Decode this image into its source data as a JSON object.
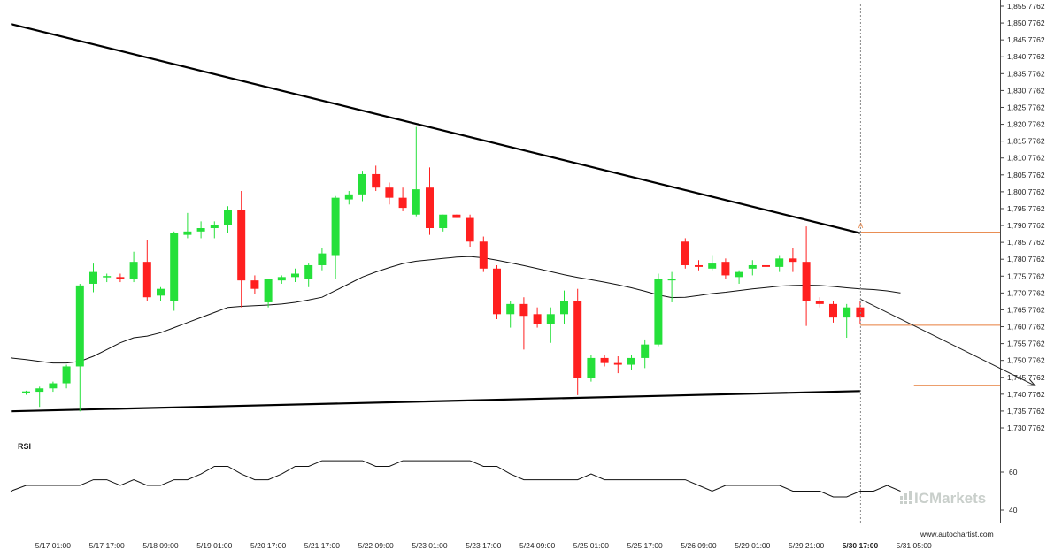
{
  "chart_data": [
    {
      "type": "candlestick",
      "title": "",
      "ylim": [
        1730.7762,
        1855.7762
      ],
      "yticks": [
        "1,855.7762",
        "1,850.7762",
        "1,845.7762",
        "1,840.7762",
        "1,835.7762",
        "1,830.7762",
        "1,825.7762",
        "1,820.7762",
        "1,815.7762",
        "1,810.7762",
        "1,805.7762",
        "1,800.7762",
        "1,795.7762",
        "1,790.7762",
        "1,785.7762",
        "1,780.7762",
        "1,775.7762",
        "1,770.7762",
        "1,765.7762",
        "1,760.7762",
        "1,755.7762",
        "1,750.7762",
        "1,745.7762",
        "1,740.7762",
        "1,735.7762",
        "1,730.7762"
      ],
      "xticks": [
        {
          "label": "5/17 01:00",
          "bar": 2
        },
        {
          "label": "5/17 17:00",
          "bar": 6
        },
        {
          "label": "5/18 09:00",
          "bar": 10
        },
        {
          "label": "5/19 01:00",
          "bar": 14
        },
        {
          "label": "5/20 17:00",
          "bar": 18
        },
        {
          "label": "5/21 17:00",
          "bar": 22
        },
        {
          "label": "5/22 09:00",
          "bar": 26
        },
        {
          "label": "5/23 01:00",
          "bar": 30
        },
        {
          "label": "5/23 17:00",
          "bar": 34
        },
        {
          "label": "5/24 09:00",
          "bar": 38
        },
        {
          "label": "5/25 01:00",
          "bar": 42
        },
        {
          "label": "5/25 17:00",
          "bar": 46
        },
        {
          "label": "5/26 09:00",
          "bar": 50
        },
        {
          "label": "5/29 01:00",
          "bar": 54
        },
        {
          "label": "5/29 21:00",
          "bar": 58
        },
        {
          "label": "5/30 17:00",
          "bar": 62,
          "bold": true
        },
        {
          "label": "5/31 05:00",
          "bar": 66
        }
      ],
      "candles": [
        [
          1741.2,
          1741.8,
          1740.6,
          1741.6
        ],
        [
          1741.5,
          1743.0,
          1737.0,
          1742.5
        ],
        [
          1742.5,
          1744.5,
          1741.5,
          1744.0
        ],
        [
          1744.0,
          1749.5,
          1742.5,
          1749.0
        ],
        [
          1749.0,
          1773.5,
          1735.7,
          1773.0
        ],
        [
          1773.5,
          1779.5,
          1771.0,
          1777.0
        ],
        [
          1775.5,
          1776.5,
          1774.0,
          1775.8
        ],
        [
          1775.5,
          1776.5,
          1774.0,
          1775.0
        ],
        [
          1775.0,
          1783.0,
          1774.0,
          1780.0
        ],
        [
          1780.0,
          1786.5,
          1768.5,
          1769.5
        ],
        [
          1770.0,
          1772.5,
          1768.5,
          1772.0
        ],
        [
          1768.5,
          1789.0,
          1765.5,
          1788.5
        ],
        [
          1788.0,
          1794.5,
          1787.0,
          1789.0
        ],
        [
          1789.0,
          1792.0,
          1787.0,
          1790.0
        ],
        [
          1790.0,
          1792.0,
          1787.0,
          1791.0
        ],
        [
          1791.0,
          1796.5,
          1788.5,
          1795.5
        ],
        [
          1795.5,
          1801.0,
          1766.5,
          1774.5
        ],
        [
          1774.5,
          1776.0,
          1770.5,
          1772.0
        ],
        [
          1768.0,
          1775.0,
          1766.5,
          1775.0
        ],
        [
          1774.5,
          1776.0,
          1773.5,
          1775.5
        ],
        [
          1775.5,
          1778.0,
          1774.0,
          1776.5
        ],
        [
          1775.0,
          1779.5,
          1772.5,
          1779.0
        ],
        [
          1779.0,
          1784.0,
          1777.5,
          1782.5
        ],
        [
          1782.0,
          1799.5,
          1775.0,
          1799.0
        ],
        [
          1798.5,
          1801.0,
          1797.0,
          1800.0
        ],
        [
          1800.0,
          1807.0,
          1798.0,
          1806.0
        ],
        [
          1806.0,
          1808.5,
          1801.0,
          1802.0
        ],
        [
          1802.0,
          1803.5,
          1797.0,
          1799.0
        ],
        [
          1799.0,
          1802.0,
          1795.0,
          1796.0
        ],
        [
          1794.0,
          1820.0,
          1793.5,
          1801.5
        ],
        [
          1802.0,
          1808.0,
          1788.0,
          1790.0
        ],
        [
          1790.0,
          1794.0,
          1789.0,
          1794.0
        ],
        [
          1794.0,
          1794.0,
          1793.0,
          1793.0
        ],
        [
          1793.0,
          1794.0,
          1784.5,
          1786.0
        ],
        [
          1786.0,
          1787.5,
          1777.0,
          1778.0
        ],
        [
          1778.0,
          1779.0,
          1763.0,
          1764.5
        ],
        [
          1764.5,
          1768.5,
          1760.5,
          1767.5
        ],
        [
          1767.5,
          1769.5,
          1754.0,
          1764.0
        ],
        [
          1764.5,
          1766.5,
          1760.5,
          1761.5
        ],
        [
          1761.5,
          1766.5,
          1756.0,
          1764.5
        ],
        [
          1764.5,
          1771.5,
          1761.5,
          1768.5
        ],
        [
          1768.5,
          1772.0,
          1740.5,
          1745.5
        ],
        [
          1745.5,
          1752.5,
          1744.5,
          1751.5
        ],
        [
          1751.5,
          1752.5,
          1749.0,
          1750.0
        ],
        [
          1750.0,
          1752.0,
          1747.0,
          1749.5
        ],
        [
          1749.5,
          1752.5,
          1748.0,
          1751.5
        ],
        [
          1751.5,
          1757.0,
          1748.5,
          1755.5
        ],
        [
          1755.5,
          1776.5,
          1755.0,
          1775.0
        ],
        [
          1774.5,
          1777.0,
          1768.0,
          1775.0
        ],
        [
          1786.0,
          1787.0,
          1778.0,
          1779.0
        ],
        [
          1779.0,
          1780.5,
          1777.5,
          1778.5
        ],
        [
          1778.0,
          1782.0,
          1777.5,
          1779.5
        ],
        [
          1780.0,
          1781.0,
          1775.0,
          1776.0
        ],
        [
          1775.5,
          1777.5,
          1773.5,
          1777.0
        ],
        [
          1778.0,
          1780.5,
          1776.0,
          1779.0
        ],
        [
          1779.0,
          1780.0,
          1778.0,
          1778.5
        ],
        [
          1778.5,
          1782.0,
          1777.0,
          1781.0
        ],
        [
          1781.0,
          1784.0,
          1777.0,
          1780.0
        ],
        [
          1780.0,
          1790.5,
          1761.0,
          1768.5
        ],
        [
          1768.5,
          1769.5,
          1766.5,
          1767.5
        ],
        [
          1767.5,
          1768.5,
          1762.0,
          1763.5
        ],
        [
          1763.5,
          1767.5,
          1757.5,
          1766.5
        ],
        [
          1766.5,
          1768.5,
          1761.5,
          1763.5
        ]
      ],
      "moving_average": [
        1751.5,
        1751.0,
        1750.5,
        1750.0,
        1750.0,
        1750.5,
        1752.0,
        1754.0,
        1756.0,
        1757.5,
        1758.0,
        1759.0,
        1760.5,
        1762.0,
        1763.5,
        1765.0,
        1766.5,
        1766.8,
        1767.0,
        1767.2,
        1767.5,
        1768.0,
        1768.7,
        1769.5,
        1771.5,
        1773.5,
        1775.5,
        1777.0,
        1778.3,
        1779.5,
        1780.2,
        1780.6,
        1781.0,
        1781.4,
        1781.6,
        1781.2,
        1780.5,
        1779.7,
        1778.9,
        1778.0,
        1777.1,
        1776.2,
        1775.4,
        1774.7,
        1774.0,
        1773.2,
        1772.3,
        1771.3,
        1770.2,
        1769.4,
        1769.5,
        1770.0,
        1770.6,
        1771.0,
        1771.5,
        1772.0,
        1772.4,
        1772.8,
        1773.0,
        1773.1,
        1773.0,
        1772.7,
        1772.3,
        1772.0,
        1771.8,
        1771.4,
        1770.8
      ],
      "trendlines": [
        {
          "name": "resistance",
          "from": [
            -1,
            1850.5
          ],
          "to": [
            62,
            1788.5
          ]
        },
        {
          "name": "support",
          "from": [
            -1,
            1735.7
          ],
          "to": [
            62,
            1741.7
          ]
        }
      ],
      "projection": {
        "from": [
          62,
          1769.0
        ],
        "to": [
          75,
          1743.3
        ]
      },
      "levels": [
        {
          "name": "breakout-level",
          "value": 1788.8,
          "from_bar": 62
        },
        {
          "name": "current-level",
          "value": 1761.2,
          "from_bar": 62
        },
        {
          "name": "target-level",
          "value": 1743.3,
          "from_bar": 66
        }
      ],
      "marker": {
        "label": "A",
        "bar": 62,
        "value": 1789.5
      },
      "current_time_bar": 62
    },
    {
      "type": "line",
      "title": "RSI",
      "ylim": [
        40,
        70
      ],
      "yticks": [
        60,
        40
      ],
      "values": [
        50,
        53,
        53,
        53,
        53,
        53,
        56,
        56,
        53,
        56,
        53,
        53,
        56,
        56,
        59,
        63,
        63,
        59,
        56,
        56,
        59,
        63,
        63,
        66,
        66,
        66,
        66,
        63,
        63,
        66,
        66,
        66,
        66,
        66,
        66,
        63,
        63,
        59,
        56,
        56,
        56,
        56,
        56,
        59,
        56,
        56,
        56,
        56,
        56,
        56,
        56,
        53,
        50,
        53,
        53,
        53,
        53,
        53,
        50,
        50,
        50,
        47,
        47,
        50,
        50,
        53,
        50
      ]
    }
  ],
  "watermark": {
    "text": "ICMarkets"
  },
  "source": {
    "text": "www.autochartist.com"
  },
  "colors": {
    "bull": "#25e03a",
    "bear": "#ff1f1f",
    "trendline": "#000000",
    "level": "#e67e3c",
    "current_time": "#888888",
    "projection": "#222222"
  }
}
